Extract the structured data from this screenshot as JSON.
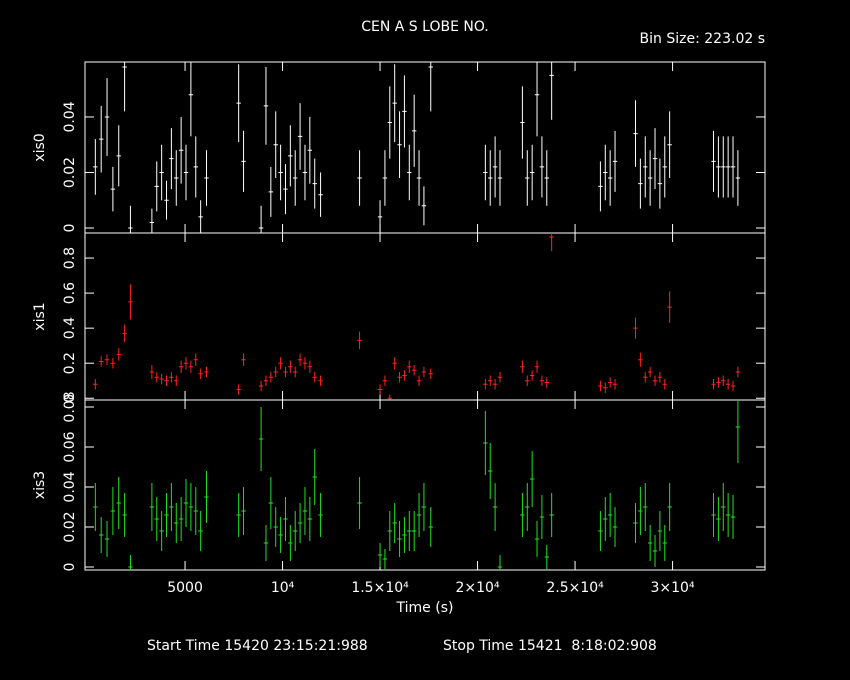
{
  "header": {
    "title": "CEN A S LOBE NO.",
    "bin_size": "Bin Size: 223.02 s",
    "x_label": "Time (s)",
    "start_time": "Start Time 15420 23:15:21:988",
    "stop_time": "Stop Time 15421  8:18:02:908"
  },
  "chart_data": [
    {
      "type": "errorbar",
      "y_label": "xis0",
      "color": "#ffffff",
      "xlim": [
        -130,
        34740
      ],
      "ylim": [
        -0.0018,
        0.0598
      ],
      "yticks": [
        0,
        0.02,
        0.04
      ],
      "x": [
        400,
        700,
        1000,
        1300,
        1600,
        1900,
        2200,
        3300,
        3550,
        3800,
        4050,
        4300,
        4550,
        4800,
        5050,
        5300,
        5550,
        5800,
        6100,
        7750,
        8000,
        8900,
        9150,
        9400,
        9650,
        9900,
        10150,
        10400,
        10650,
        10900,
        11150,
        11400,
        11650,
        11950,
        13950,
        15000,
        15250,
        15500,
        15750,
        16000,
        16250,
        16500,
        16750,
        17000,
        17250,
        17600,
        20400,
        20650,
        20900,
        21150,
        22300,
        22550,
        22800,
        23050,
        23300,
        23550,
        23800,
        26300,
        26550,
        26800,
        27050,
        28100,
        28350,
        28600,
        28850,
        29100,
        29350,
        29600,
        29850,
        32100,
        32350,
        32600,
        32850,
        33100,
        33350
      ],
      "values": [
        0.022,
        0.032,
        0.04,
        0.014,
        0.026,
        0.058,
        0,
        0.002,
        0.015,
        0.02,
        0.01,
        0.025,
        0.018,
        0.028,
        0.02,
        0.048,
        0.022,
        0.004,
        0.018,
        0.045,
        0.024,
        0,
        0.044,
        0.013,
        0.03,
        0.02,
        0.014,
        0.026,
        0.018,
        0.033,
        0.02,
        0.028,
        0.016,
        0.012,
        0.018,
        0.004,
        0.018,
        0.038,
        0.045,
        0.03,
        0.042,
        0.02,
        0.035,
        0.018,
        0.008,
        0.058,
        0.02,
        0.018,
        0.022,
        0.018,
        0.038,
        0.018,
        0.02,
        0.048,
        0.022,
        0.018,
        0.055,
        0.015,
        0.02,
        0.018,
        0.024,
        0.034,
        0.016,
        0.022,
        0.018,
        0.025,
        0.016,
        0.022,
        0.03,
        0.024,
        0.022,
        0.022,
        0.022,
        0.022,
        0.018
      ],
      "errors": [
        0.01,
        0.012,
        0.014,
        0.008,
        0.011,
        0.016,
        0.008,
        0.005,
        0.009,
        0.01,
        0.007,
        0.011,
        0.01,
        0.012,
        0.01,
        0.015,
        0.011,
        0.006,
        0.01,
        0.014,
        0.011,
        0.008,
        0.014,
        0.009,
        0.012,
        0.01,
        0.009,
        0.011,
        0.01,
        0.012,
        0.01,
        0.012,
        0.009,
        0.008,
        0.01,
        0.006,
        0.01,
        0.013,
        0.014,
        0.012,
        0.013,
        0.01,
        0.013,
        0.01,
        0.007,
        0.016,
        0.01,
        0.01,
        0.011,
        0.01,
        0.013,
        0.01,
        0.01,
        0.015,
        0.011,
        0.01,
        0.016,
        0.009,
        0.01,
        0.01,
        0.011,
        0.012,
        0.009,
        0.011,
        0.01,
        0.011,
        0.009,
        0.011,
        0.012,
        0.011,
        0.011,
        0.011,
        0.011,
        0.011,
        0.01
      ]
    },
    {
      "type": "errorbar",
      "y_label": "xis1",
      "color": "#ff2020",
      "xlim": [
        -130,
        34740
      ],
      "ylim": [
        -0.01,
        0.943
      ],
      "yticks": [
        0,
        0.2,
        0.4,
        0.6,
        0.8
      ],
      "x": [
        400,
        700,
        1000,
        1300,
        1600,
        1900,
        2200,
        3300,
        3550,
        3800,
        4050,
        4300,
        4550,
        4800,
        5050,
        5300,
        5550,
        5800,
        6100,
        7750,
        8000,
        8900,
        9150,
        9400,
        9650,
        9900,
        10150,
        10400,
        10650,
        10900,
        11150,
        11400,
        11650,
        11950,
        13950,
        15000,
        15250,
        15500,
        15750,
        16000,
        16250,
        16500,
        16750,
        17000,
        17250,
        17600,
        20400,
        20650,
        20900,
        21150,
        22300,
        22550,
        22800,
        23050,
        23300,
        23550,
        23800,
        26300,
        26550,
        26800,
        27050,
        28100,
        28350,
        28600,
        28850,
        29100,
        29350,
        29600,
        29850,
        32100,
        32350,
        32600,
        32850,
        33100,
        33350
      ],
      "values": [
        0.08,
        0.21,
        0.22,
        0.2,
        0.25,
        0.37,
        0.55,
        0.15,
        0.12,
        0.11,
        0.1,
        0.12,
        0.1,
        0.18,
        0.2,
        0.18,
        0.22,
        0.14,
        0.15,
        0.05,
        0.22,
        0.07,
        0.1,
        0.12,
        0.15,
        0.2,
        0.15,
        0.18,
        0.15,
        0.22,
        0.2,
        0.18,
        0.12,
        0.1,
        0.33,
        0.05,
        0.1,
        0,
        0.2,
        0.12,
        0.13,
        0.18,
        0.16,
        0.1,
        0.15,
        0.14,
        0.08,
        0.1,
        0.08,
        0.12,
        0.18,
        0.1,
        0.13,
        0.18,
        0.1,
        0.09,
        0.92,
        0.07,
        0.06,
        0.09,
        0.08,
        0.4,
        0.22,
        0.12,
        0.15,
        0.1,
        0.12,
        0.08,
        0.52,
        0.08,
        0.09,
        0.1,
        0.08,
        0.07,
        0.15
      ],
      "errors": [
        0.03,
        0.03,
        0.03,
        0.03,
        0.035,
        0.05,
        0.1,
        0.04,
        0.03,
        0.03,
        0.03,
        0.03,
        0.03,
        0.035,
        0.035,
        0.035,
        0.035,
        0.03,
        0.03,
        0.03,
        0.035,
        0.03,
        0.03,
        0.03,
        0.03,
        0.035,
        0.03,
        0.035,
        0.03,
        0.035,
        0.035,
        0.035,
        0.03,
        0.03,
        0.05,
        0.03,
        0.03,
        0.02,
        0.035,
        0.03,
        0.03,
        0.035,
        0.03,
        0.03,
        0.03,
        0.03,
        0.03,
        0.03,
        0.03,
        0.03,
        0.035,
        0.03,
        0.03,
        0.035,
        0.03,
        0.03,
        0.08,
        0.03,
        0.03,
        0.03,
        0.03,
        0.06,
        0.04,
        0.03,
        0.03,
        0.03,
        0.03,
        0.03,
        0.09,
        0.03,
        0.03,
        0.03,
        0.03,
        0.03,
        0.03
      ]
    },
    {
      "type": "errorbar",
      "y_label": "xis3",
      "color": "#20e020",
      "xlim": [
        -130,
        34740
      ],
      "ylim": [
        -0.0015,
        0.0835
      ],
      "yticks": [
        0,
        0.02,
        0.04,
        0.06,
        0.08
      ],
      "xticks": [
        5000,
        {
          "value": 10000,
          "label": "10⁴"
        },
        {
          "value": 15000,
          "label": "1.5×10⁴"
        },
        {
          "value": 20000,
          "label": "2×10⁴"
        },
        {
          "value": 25000,
          "label": "2.5×10⁴"
        },
        {
          "value": 30000,
          "label": "3×10⁴"
        }
      ],
      "x": [
        400,
        700,
        1000,
        1300,
        1600,
        1900,
        2200,
        3300,
        3550,
        3800,
        4050,
        4300,
        4550,
        4800,
        5050,
        5300,
        5550,
        5800,
        6100,
        7750,
        8000,
        8900,
        9150,
        9400,
        9650,
        9900,
        10150,
        10400,
        10650,
        10900,
        11150,
        11400,
        11650,
        11950,
        13950,
        15000,
        15250,
        15500,
        15750,
        16000,
        16250,
        16500,
        16750,
        17000,
        17250,
        17600,
        20400,
        20650,
        20900,
        21150,
        22300,
        22550,
        22800,
        23050,
        23300,
        23550,
        23800,
        26300,
        26550,
        26800,
        27050,
        28100,
        28350,
        28600,
        28850,
        29100,
        29350,
        29600,
        29850,
        32100,
        32350,
        32600,
        32850,
        33100,
        33350
      ],
      "values": [
        0.03,
        0.016,
        0.014,
        0.028,
        0.032,
        0.026,
        0,
        0.03,
        0.024,
        0.018,
        0.026,
        0.03,
        0.022,
        0.024,
        0.032,
        0.03,
        0.028,
        0.018,
        0.035,
        0.026,
        0.028,
        0.064,
        0.012,
        0.032,
        0.02,
        0.016,
        0.024,
        0.012,
        0.018,
        0.022,
        0.028,
        0.024,
        0.045,
        0.026,
        0.032,
        0.006,
        0.004,
        0.018,
        0.022,
        0.014,
        0.016,
        0.018,
        0.018,
        0.026,
        0.03,
        0.02,
        0.062,
        0.048,
        0.03,
        0,
        0.026,
        0.03,
        0.044,
        0.014,
        0.025,
        0.005,
        0.026,
        0.018,
        0.024,
        0.026,
        0.02,
        0.022,
        0.028,
        0.03,
        0.012,
        0.008,
        0.018,
        0.012,
        0.03,
        0.026,
        0.024,
        0.03,
        0.026,
        0.025,
        0.07
      ],
      "errors": [
        0.012,
        0.009,
        0.009,
        0.012,
        0.013,
        0.011,
        0.006,
        0.012,
        0.011,
        0.01,
        0.011,
        0.012,
        0.01,
        0.011,
        0.012,
        0.012,
        0.012,
        0.01,
        0.013,
        0.011,
        0.012,
        0.016,
        0.009,
        0.013,
        0.01,
        0.009,
        0.011,
        0.009,
        0.01,
        0.01,
        0.012,
        0.011,
        0.014,
        0.011,
        0.013,
        0.006,
        0.005,
        0.01,
        0.01,
        0.009,
        0.009,
        0.01,
        0.01,
        0.011,
        0.012,
        0.01,
        0.016,
        0.014,
        0.012,
        0.006,
        0.011,
        0.012,
        0.014,
        0.009,
        0.011,
        0.006,
        0.011,
        0.01,
        0.011,
        0.011,
        0.01,
        0.01,
        0.012,
        0.012,
        0.009,
        0.008,
        0.01,
        0.009,
        0.012,
        0.011,
        0.011,
        0.012,
        0.011,
        0.011,
        0.018
      ]
    }
  ]
}
